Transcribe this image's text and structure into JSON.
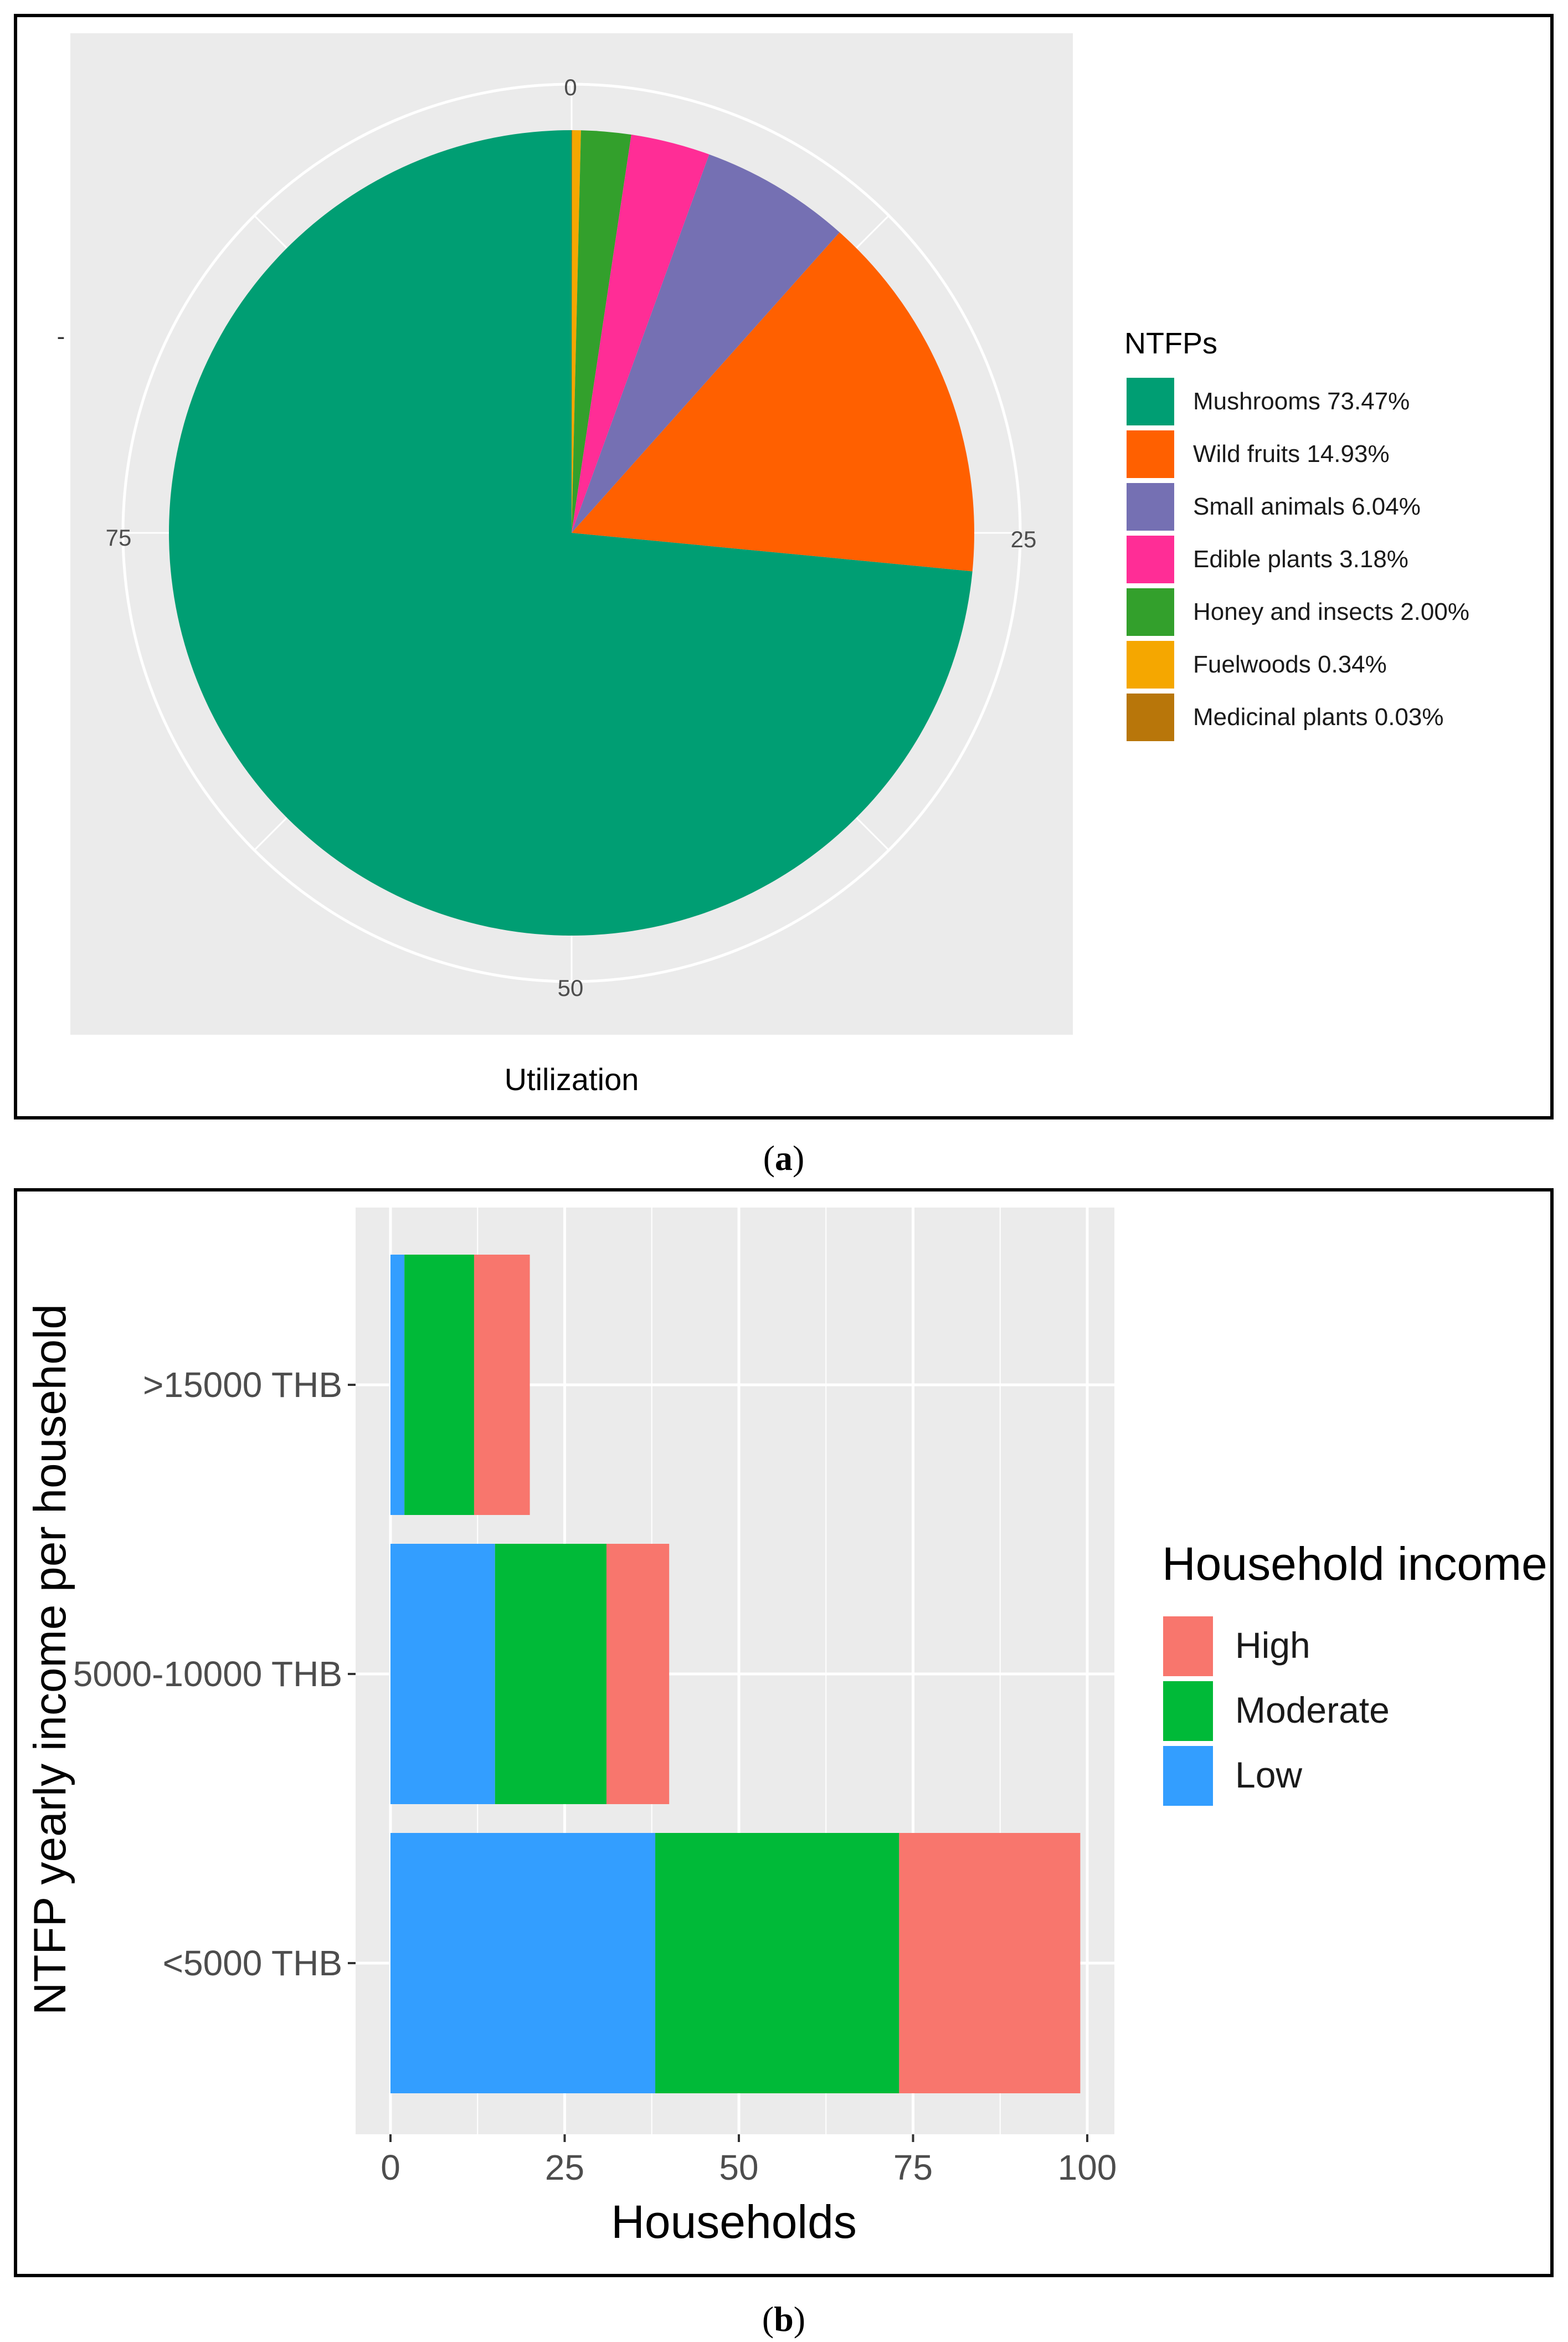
{
  "chart_data": [
    {
      "type": "pie",
      "panel_label": "a",
      "xlabel": "Utilization",
      "ylabel": "-",
      "radial_ticks": [
        "0",
        "25",
        "50",
        "75"
      ],
      "legend_title": "NTFPs",
      "legend_position": "right",
      "slices": [
        {
          "label": "Mushrooms 73.47%",
          "value": 73.47,
          "color": "#009E73"
        },
        {
          "label": "Wild fruits 14.93%",
          "value": 14.93,
          "color": "#FF6000"
        },
        {
          "label": "Small animals 6.04%",
          "value": 6.04,
          "color": "#7570B3"
        },
        {
          "label": "Edible plants 3.18%",
          "value": 3.18,
          "color": "#FF2D96"
        },
        {
          "label": "Honey and insects 2.00%",
          "value": 2.0,
          "color": "#33A02C"
        },
        {
          "label": "Fuelwoods 0.34%",
          "value": 0.34,
          "color": "#F5A700"
        },
        {
          "label": "Medicinal plants 0.03%",
          "value": 0.03,
          "color": "#B8760A"
        }
      ]
    },
    {
      "type": "bar",
      "orientation": "horizontal",
      "stacked": true,
      "panel_label": "b",
      "xlabel": "Households",
      "ylabel": "NTFP yearly income per household",
      "categories": [
        "<5000 THB",
        "5000-10000 THB",
        ">15000 THB"
      ],
      "xlim": [
        0,
        100
      ],
      "xticks": [
        "0",
        "25",
        "50",
        "75",
        "100"
      ],
      "legend_title": "Household income",
      "legend_position": "right",
      "legend_entries": [
        {
          "label": "High",
          "color": "#F8766D"
        },
        {
          "label": "Moderate",
          "color": "#00BA38"
        },
        {
          "label": "Low",
          "color": "#339EFF"
        }
      ],
      "series": [
        {
          "name": "Low",
          "color": "#339EFF",
          "values": [
            38,
            15,
            2
          ]
        },
        {
          "name": "Moderate",
          "color": "#00BA38",
          "values": [
            35,
            16,
            10
          ]
        },
        {
          "name": "High",
          "color": "#F8766D",
          "values": [
            26,
            9,
            8
          ]
        }
      ]
    }
  ]
}
